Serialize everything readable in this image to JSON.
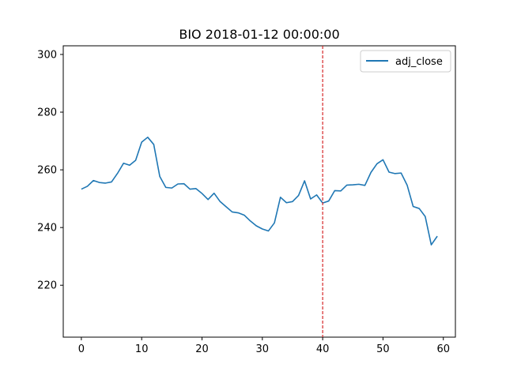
{
  "chart_data": {
    "type": "line",
    "title": "BIO 2018-01-12 00:00:00",
    "xlabel": "",
    "ylabel": "",
    "xlim": [
      -3,
      62
    ],
    "ylim": [
      202,
      303
    ],
    "xticks": [
      0,
      10,
      20,
      30,
      40,
      50,
      60
    ],
    "yticks": [
      220,
      240,
      260,
      280,
      300
    ],
    "grid": false,
    "legend_position": "top-right",
    "marker_line": {
      "x": 40,
      "style": "dashed",
      "color": "#d62728"
    },
    "series": [
      {
        "name": "adj_close",
        "color": "#1f77b4",
        "x": [
          0,
          1,
          2,
          3,
          4,
          5,
          6,
          7,
          8,
          9,
          10,
          11,
          12,
          13,
          14,
          15,
          16,
          17,
          18,
          19,
          20,
          21,
          22,
          23,
          24,
          25,
          26,
          27,
          28,
          29,
          30,
          31,
          32,
          33,
          34,
          35,
          36,
          37,
          38,
          39,
          40,
          41,
          42,
          43,
          44,
          45,
          46,
          47,
          48,
          49,
          50,
          51,
          52,
          53,
          54,
          55,
          56,
          57,
          58,
          59
        ],
        "values": [
          253.3,
          254.3,
          256.3,
          255.6,
          255.4,
          255.8,
          258.8,
          262.3,
          261.6,
          263.3,
          269.6,
          271.3,
          268.8,
          257.7,
          253.9,
          253.7,
          255.1,
          255.2,
          253.3,
          253.5,
          251.8,
          249.7,
          251.9,
          249.0,
          247.2,
          245.4,
          245.1,
          244.3,
          242.3,
          240.6,
          239.5,
          238.8,
          241.6,
          250.5,
          248.6,
          249.0,
          251.1,
          256.2,
          249.9,
          251.3,
          248.5,
          249.2,
          252.8,
          252.7,
          254.7,
          254.8,
          255.0,
          254.6,
          259.1,
          262.1,
          263.5,
          259.2,
          258.7,
          258.9,
          254.7,
          247.3,
          246.6,
          243.8,
          234.0,
          237.0
        ]
      }
    ]
  }
}
